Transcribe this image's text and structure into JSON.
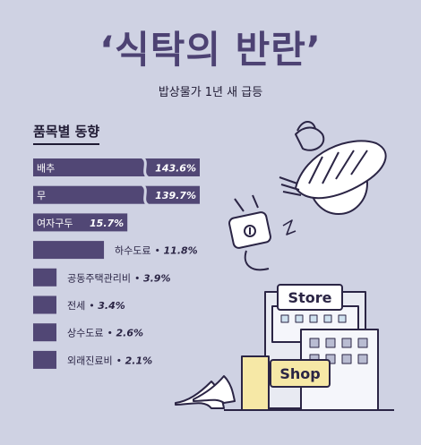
{
  "title": "‘식탁의 반란’",
  "subtitle": "밥상물가 1년 새 급등",
  "section_label": "품목별 동향",
  "illustration": {
    "store_sign": "Store",
    "shop_sign": "Shop"
  },
  "chart_data": {
    "type": "bar",
    "orientation": "horizontal",
    "unit": "%",
    "categories": [
      "배추",
      "무",
      "여자구두",
      "하수도료",
      "공동주택관리비",
      "전세",
      "상수도료",
      "외래진료비"
    ],
    "values": [
      143.6,
      139.7,
      15.7,
      11.8,
      3.9,
      3.4,
      2.6,
      2.1
    ],
    "value_labels": [
      "143.6%",
      "139.7%",
      "15.7%",
      "11.8%",
      "3.9%",
      "3.4%",
      "2.6%",
      "2.1%"
    ],
    "axis_broken_for": [
      "배추",
      "무"
    ],
    "bar_color": "#514775",
    "label_color_inside": "#ffffff",
    "label_color_outside": "#2b2545"
  }
}
